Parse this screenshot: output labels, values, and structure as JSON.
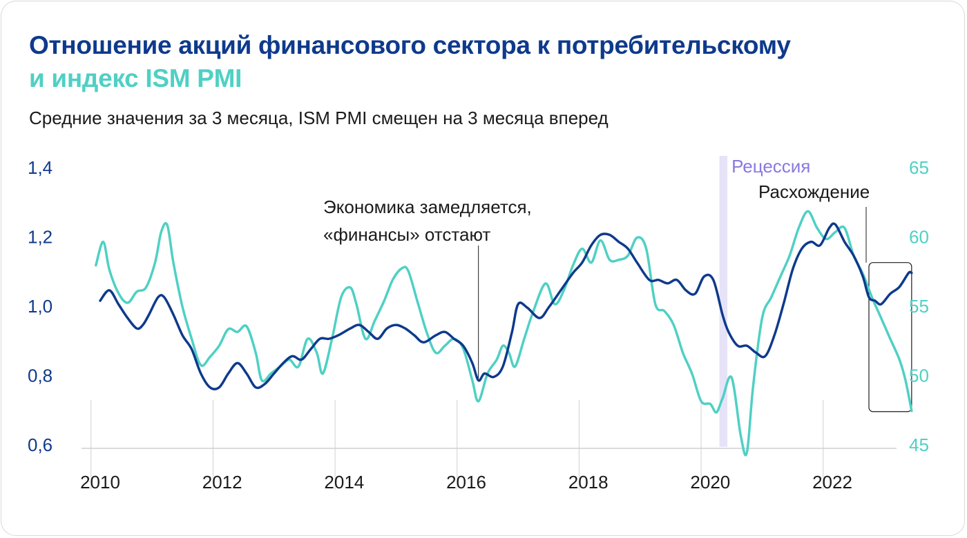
{
  "title_line1": "Отношение акций финансового сектора к потребительскому",
  "title_line2": "и индекс ISM PMI",
  "subtitle": "Средние значения за 3 месяца, ISM PMI смещен на 3 месяца вперед",
  "colors": {
    "ratio": "#0e3a8c",
    "pmi": "#4fd0c4",
    "recession": "#e6e3f8",
    "recession_text": "#8878e0"
  },
  "chart_data": {
    "type": "line",
    "x_ticks": [
      2010,
      2012,
      2014,
      2016,
      2018,
      2020,
      2022
    ],
    "x_tick_labels": [
      "2010",
      "2012",
      "2014",
      "2016",
      "2018",
      "2020",
      "2022"
    ],
    "xlim": [
      2009.8,
      2023.3
    ],
    "y_left": {
      "ticks": [
        1.4,
        1.2,
        1.0,
        0.8,
        0.6
      ],
      "tick_labels": [
        "1,4",
        "1,2",
        "1,0",
        "0,8",
        "0,6"
      ],
      "lim": [
        0.6,
        1.4
      ]
    },
    "y_right": {
      "ticks": [
        65,
        60,
        55,
        50,
        45
      ],
      "tick_labels": [
        "65",
        "60",
        "55",
        "50",
        "45"
      ],
      "lim": [
        45,
        65
      ]
    },
    "recession": {
      "label": "Рецессия",
      "x": [
        2020.15,
        2020.28
      ]
    },
    "annotations": [
      {
        "id": "slowdown",
        "lines": [
          "Экономика замедляется,",
          "«финансы» отстают"
        ],
        "x": 2016.2
      },
      {
        "id": "divergence",
        "text": "Расхождение",
        "box_x": [
          2022.6,
          2023.3
        ],
        "box_y_left": [
          0.69,
          1.12
        ]
      }
    ],
    "series": [
      {
        "axis": "left",
        "points": [
          [
            2010.0,
            1.01
          ],
          [
            2010.15,
            1.04
          ],
          [
            2010.3,
            1.0
          ],
          [
            2010.45,
            0.96
          ],
          [
            2010.6,
            0.93
          ],
          [
            2010.7,
            0.94
          ],
          [
            2010.8,
            0.97
          ],
          [
            2010.95,
            1.02
          ],
          [
            2011.05,
            1.02
          ],
          [
            2011.2,
            0.97
          ],
          [
            2011.35,
            0.91
          ],
          [
            2011.5,
            0.87
          ],
          [
            2011.65,
            0.8
          ],
          [
            2011.8,
            0.76
          ],
          [
            2011.95,
            0.76
          ],
          [
            2012.1,
            0.8
          ],
          [
            2012.25,
            0.83
          ],
          [
            2012.4,
            0.8
          ],
          [
            2012.55,
            0.76
          ],
          [
            2012.7,
            0.77
          ],
          [
            2012.85,
            0.8
          ],
          [
            2013.0,
            0.83
          ],
          [
            2013.15,
            0.85
          ],
          [
            2013.3,
            0.84
          ],
          [
            2013.45,
            0.87
          ],
          [
            2013.6,
            0.9
          ],
          [
            2013.75,
            0.9
          ],
          [
            2013.9,
            0.91
          ],
          [
            2014.1,
            0.93
          ],
          [
            2014.25,
            0.94
          ],
          [
            2014.4,
            0.92
          ],
          [
            2014.55,
            0.9
          ],
          [
            2014.7,
            0.93
          ],
          [
            2014.85,
            0.94
          ],
          [
            2015.0,
            0.93
          ],
          [
            2015.15,
            0.91
          ],
          [
            2015.3,
            0.89
          ],
          [
            2015.5,
            0.91
          ],
          [
            2015.65,
            0.92
          ],
          [
            2015.8,
            0.9
          ],
          [
            2015.95,
            0.88
          ],
          [
            2016.1,
            0.83
          ],
          [
            2016.2,
            0.78
          ],
          [
            2016.3,
            0.8
          ],
          [
            2016.45,
            0.79
          ],
          [
            2016.6,
            0.82
          ],
          [
            2016.75,
            0.92
          ],
          [
            2016.85,
            1.0
          ],
          [
            2017.0,
            0.99
          ],
          [
            2017.2,
            0.96
          ],
          [
            2017.35,
            0.99
          ],
          [
            2017.55,
            1.04
          ],
          [
            2017.75,
            1.09
          ],
          [
            2017.9,
            1.12
          ],
          [
            2018.05,
            1.17
          ],
          [
            2018.2,
            1.2
          ],
          [
            2018.35,
            1.2
          ],
          [
            2018.5,
            1.18
          ],
          [
            2018.65,
            1.16
          ],
          [
            2018.8,
            1.12
          ],
          [
            2019.0,
            1.07
          ],
          [
            2019.15,
            1.07
          ],
          [
            2019.3,
            1.06
          ],
          [
            2019.45,
            1.07
          ],
          [
            2019.6,
            1.04
          ],
          [
            2019.75,
            1.03
          ],
          [
            2019.9,
            1.08
          ],
          [
            2020.05,
            1.07
          ],
          [
            2020.2,
            0.97
          ],
          [
            2020.3,
            0.92
          ],
          [
            2020.45,
            0.88
          ],
          [
            2020.6,
            0.88
          ],
          [
            2020.75,
            0.86
          ],
          [
            2020.9,
            0.85
          ],
          [
            2021.05,
            0.91
          ],
          [
            2021.2,
            1.0
          ],
          [
            2021.35,
            1.1
          ],
          [
            2021.5,
            1.16
          ],
          [
            2021.65,
            1.18
          ],
          [
            2021.8,
            1.17
          ],
          [
            2021.95,
            1.22
          ],
          [
            2022.05,
            1.23
          ],
          [
            2022.2,
            1.18
          ],
          [
            2022.35,
            1.14
          ],
          [
            2022.5,
            1.08
          ],
          [
            2022.6,
            1.02
          ],
          [
            2022.7,
            1.01
          ],
          [
            2022.8,
            1.0
          ],
          [
            2022.95,
            1.03
          ],
          [
            2023.1,
            1.05
          ],
          [
            2023.25,
            1.09
          ],
          [
            2023.3,
            1.09
          ]
        ]
      },
      {
        "axis": "right",
        "points": [
          [
            2009.93,
            57.8
          ],
          [
            2010.05,
            59.5
          ],
          [
            2010.15,
            57.5
          ],
          [
            2010.3,
            55.8
          ],
          [
            2010.45,
            55.1
          ],
          [
            2010.6,
            55.9
          ],
          [
            2010.75,
            56.2
          ],
          [
            2010.9,
            58.0
          ],
          [
            2011.0,
            60.2
          ],
          [
            2011.1,
            60.7
          ],
          [
            2011.2,
            58.0
          ],
          [
            2011.35,
            54.8
          ],
          [
            2011.5,
            52.5
          ],
          [
            2011.65,
            50.6
          ],
          [
            2011.8,
            51.2
          ],
          [
            2011.95,
            52.0
          ],
          [
            2012.1,
            53.2
          ],
          [
            2012.25,
            53.0
          ],
          [
            2012.4,
            53.4
          ],
          [
            2012.55,
            51.5
          ],
          [
            2012.65,
            49.5
          ],
          [
            2012.8,
            50.0
          ],
          [
            2012.95,
            50.5
          ],
          [
            2013.1,
            51.0
          ],
          [
            2013.25,
            50.5
          ],
          [
            2013.4,
            52.5
          ],
          [
            2013.55,
            51.5
          ],
          [
            2013.65,
            50.0
          ],
          [
            2013.8,
            52.5
          ],
          [
            2013.95,
            55.5
          ],
          [
            2014.1,
            56.2
          ],
          [
            2014.2,
            55.0
          ],
          [
            2014.35,
            52.5
          ],
          [
            2014.5,
            53.8
          ],
          [
            2014.65,
            55.2
          ],
          [
            2014.8,
            56.8
          ],
          [
            2014.95,
            57.6
          ],
          [
            2015.05,
            57.4
          ],
          [
            2015.2,
            55.2
          ],
          [
            2015.35,
            53.0
          ],
          [
            2015.5,
            51.5
          ],
          [
            2015.65,
            52.0
          ],
          [
            2015.8,
            52.5
          ],
          [
            2015.95,
            51.8
          ],
          [
            2016.1,
            49.5
          ],
          [
            2016.2,
            48.0
          ],
          [
            2016.35,
            50.0
          ],
          [
            2016.5,
            51.0
          ],
          [
            2016.6,
            52.0
          ],
          [
            2016.7,
            51.5
          ],
          [
            2016.8,
            50.5
          ],
          [
            2016.95,
            52.5
          ],
          [
            2017.1,
            54.5
          ],
          [
            2017.3,
            56.5
          ],
          [
            2017.45,
            55.0
          ],
          [
            2017.6,
            56.0
          ],
          [
            2017.75,
            57.8
          ],
          [
            2017.9,
            59.0
          ],
          [
            2018.05,
            58.0
          ],
          [
            2018.2,
            59.6
          ],
          [
            2018.35,
            58.2
          ],
          [
            2018.5,
            58.2
          ],
          [
            2018.65,
            58.5
          ],
          [
            2018.8,
            59.8
          ],
          [
            2018.95,
            59.0
          ],
          [
            2019.1,
            55.0
          ],
          [
            2019.25,
            54.5
          ],
          [
            2019.4,
            53.5
          ],
          [
            2019.55,
            51.5
          ],
          [
            2019.7,
            50.0
          ],
          [
            2019.85,
            48.0
          ],
          [
            2020.0,
            47.8
          ],
          [
            2020.1,
            47.2
          ],
          [
            2020.2,
            48.2
          ],
          [
            2020.35,
            49.7
          ],
          [
            2020.5,
            45.5
          ],
          [
            2020.6,
            44.3
          ],
          [
            2020.7,
            49.0
          ],
          [
            2020.85,
            54.0
          ],
          [
            2021.0,
            55.5
          ],
          [
            2021.15,
            57.0
          ],
          [
            2021.3,
            58.5
          ],
          [
            2021.45,
            60.5
          ],
          [
            2021.6,
            61.7
          ],
          [
            2021.75,
            60.5
          ],
          [
            2021.9,
            59.7
          ],
          [
            2022.05,
            60.2
          ],
          [
            2022.2,
            60.5
          ],
          [
            2022.35,
            58.5
          ],
          [
            2022.5,
            57.2
          ],
          [
            2022.65,
            55.5
          ],
          [
            2022.8,
            54.0
          ],
          [
            2022.95,
            52.5
          ],
          [
            2023.1,
            51.0
          ],
          [
            2023.2,
            49.5
          ],
          [
            2023.3,
            47.3
          ]
        ]
      }
    ]
  }
}
